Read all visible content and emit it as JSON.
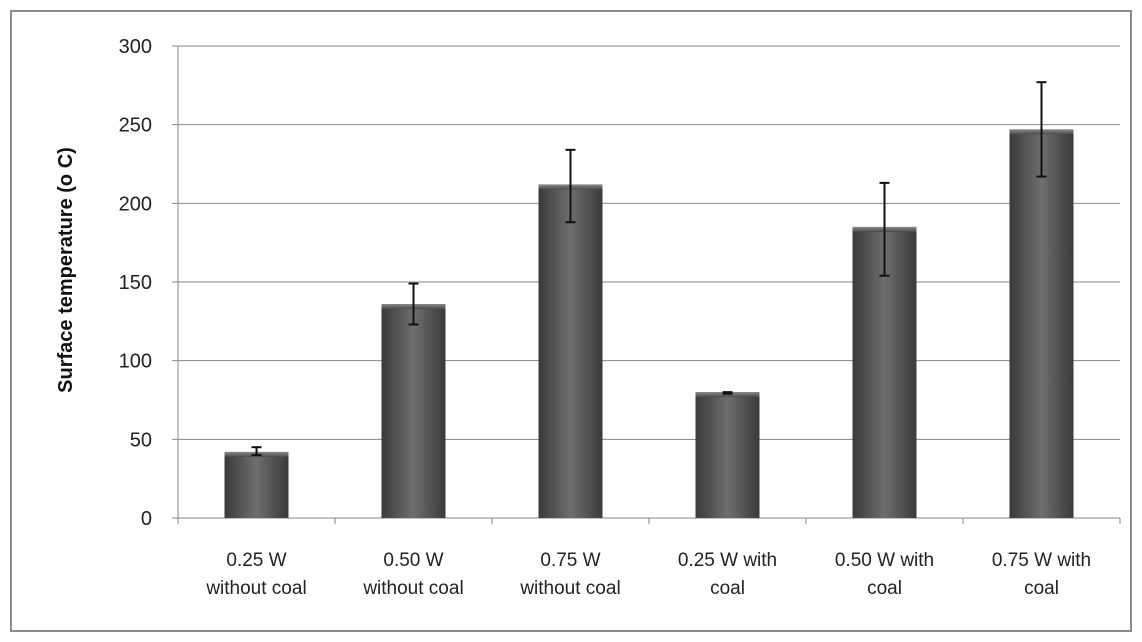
{
  "chart_data": {
    "type": "bar",
    "title": "",
    "xlabel": "",
    "ylabel": "Surface temperature (o C)",
    "ylim": [
      0,
      300
    ],
    "yticks": [
      0,
      50,
      100,
      150,
      200,
      250,
      300
    ],
    "grid": true,
    "legend": "none",
    "categories": [
      [
        "0.25 W",
        "without coal"
      ],
      [
        "0.50 W",
        "without coal"
      ],
      [
        "0.75 W",
        "without coal"
      ],
      [
        "0.25 W with",
        "coal"
      ],
      [
        "0.50 W with",
        "coal"
      ],
      [
        "0.75 W with",
        "coal"
      ]
    ],
    "values": [
      42,
      136,
      212,
      80,
      185,
      247
    ],
    "error_bars": [
      [
        40,
        45
      ],
      [
        123,
        149
      ],
      [
        188,
        234
      ],
      [
        79,
        80
      ],
      [
        154,
        213
      ],
      [
        217,
        277
      ]
    ],
    "colors": {
      "bar_dark": "#3a3a3a",
      "bar_light": "#737373",
      "grid": "#868686",
      "axis": "#868686",
      "error_bar": "#111111",
      "frame": "#8c8c8c"
    }
  }
}
